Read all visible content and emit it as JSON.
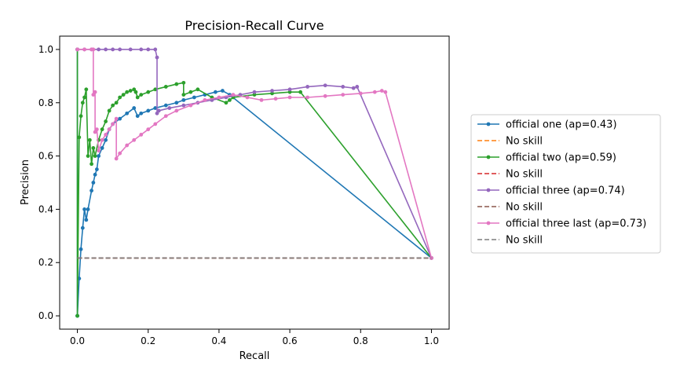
{
  "chart_data": {
    "type": "line",
    "title": "Precision-Recall Curve",
    "xlabel": "Recall",
    "ylabel": "Precision",
    "xlim": [
      -0.05,
      1.05
    ],
    "ylim": [
      -0.05,
      1.05
    ],
    "xticks": [
      "0.0",
      "0.2",
      "0.4",
      "0.6",
      "0.8",
      "1.0"
    ],
    "yticks": [
      "0.0",
      "0.2",
      "0.4",
      "0.6",
      "0.8",
      "1.0"
    ],
    "grid": false,
    "legend_position": "center-right-outside",
    "series": [
      {
        "name": "official one (ap=0.43)",
        "color": "#1f77b4",
        "style": "solid-marker",
        "x": [
          0.0,
          0.0,
          0.0,
          0.0,
          0.005,
          0.01,
          0.015,
          0.02,
          0.025,
          0.03,
          0.04,
          0.045,
          0.05,
          0.055,
          0.06,
          0.07,
          0.08,
          0.09,
          0.1,
          0.12,
          0.14,
          0.16,
          0.17,
          0.18,
          0.2,
          0.22,
          0.25,
          0.28,
          0.3,
          0.33,
          0.36,
          0.39,
          0.41,
          0.43,
          1.0
        ],
        "y": [
          0.0,
          1.0,
          0.0,
          0.0,
          0.14,
          0.25,
          0.33,
          0.4,
          0.36,
          0.4,
          0.47,
          0.5,
          0.53,
          0.55,
          0.6,
          0.63,
          0.66,
          0.7,
          0.72,
          0.74,
          0.76,
          0.78,
          0.75,
          0.76,
          0.77,
          0.78,
          0.79,
          0.8,
          0.81,
          0.82,
          0.83,
          0.84,
          0.845,
          0.83,
          0.217
        ]
      },
      {
        "name": "No skill",
        "color": "#ff7f0e",
        "style": "dashed",
        "x": [
          0.0,
          1.0
        ],
        "y": [
          0.217,
          0.217
        ]
      },
      {
        "name": "official two (ap=0.59)",
        "color": "#2ca02c",
        "style": "solid-marker",
        "x": [
          0.0,
          0.0,
          0.005,
          0.01,
          0.015,
          0.02,
          0.025,
          0.03,
          0.035,
          0.04,
          0.045,
          0.05,
          0.06,
          0.07,
          0.08,
          0.09,
          0.1,
          0.11,
          0.12,
          0.13,
          0.14,
          0.15,
          0.16,
          0.165,
          0.17,
          0.18,
          0.2,
          0.22,
          0.25,
          0.28,
          0.3,
          0.3,
          0.32,
          0.34,
          0.38,
          0.42,
          0.43,
          0.44,
          0.5,
          0.55,
          0.6,
          0.63,
          1.0
        ],
        "y": [
          1.0,
          0.0,
          0.67,
          0.75,
          0.8,
          0.82,
          0.85,
          0.6,
          0.66,
          0.57,
          0.63,
          0.6,
          0.66,
          0.7,
          0.73,
          0.77,
          0.79,
          0.8,
          0.82,
          0.83,
          0.84,
          0.845,
          0.85,
          0.84,
          0.82,
          0.83,
          0.84,
          0.85,
          0.86,
          0.87,
          0.875,
          0.83,
          0.84,
          0.85,
          0.82,
          0.8,
          0.81,
          0.82,
          0.83,
          0.835,
          0.84,
          0.84,
          0.217
        ]
      },
      {
        "name": "No skill",
        "color": "#d62728",
        "style": "dashed",
        "x": [
          0.0,
          1.0
        ],
        "y": [
          0.217,
          0.217
        ]
      },
      {
        "name": "official three (ap=0.74)",
        "color": "#9467bd",
        "style": "solid-marker",
        "x": [
          0.0,
          0.02,
          0.04,
          0.06,
          0.08,
          0.1,
          0.12,
          0.15,
          0.18,
          0.2,
          0.22,
          0.225,
          0.225,
          0.23,
          0.26,
          0.3,
          0.34,
          0.38,
          0.42,
          0.46,
          0.5,
          0.55,
          0.6,
          0.65,
          0.7,
          0.75,
          0.78,
          0.79,
          1.0
        ],
        "y": [
          1.0,
          1.0,
          1.0,
          1.0,
          1.0,
          1.0,
          1.0,
          1.0,
          1.0,
          1.0,
          1.0,
          0.97,
          0.76,
          0.77,
          0.78,
          0.79,
          0.8,
          0.81,
          0.82,
          0.83,
          0.84,
          0.845,
          0.85,
          0.86,
          0.865,
          0.86,
          0.855,
          0.86,
          0.217
        ]
      },
      {
        "name": "No skill",
        "color": "#8c564b",
        "style": "dashed",
        "x": [
          0.0,
          1.0
        ],
        "y": [
          0.217,
          0.217
        ]
      },
      {
        "name": "official three last (ap=0.73)",
        "color": "#e377c2",
        "style": "solid-marker",
        "x": [
          0.0,
          0.02,
          0.04,
          0.045,
          0.045,
          0.05,
          0.05,
          0.055,
          0.06,
          0.07,
          0.08,
          0.09,
          0.1,
          0.11,
          0.11,
          0.12,
          0.14,
          0.16,
          0.18,
          0.2,
          0.22,
          0.25,
          0.28,
          0.32,
          0.36,
          0.4,
          0.44,
          0.48,
          0.52,
          0.56,
          0.6,
          0.65,
          0.7,
          0.75,
          0.8,
          0.84,
          0.86,
          0.87,
          1.0
        ],
        "y": [
          1.0,
          1.0,
          1.0,
          1.0,
          0.83,
          0.84,
          0.69,
          0.7,
          0.62,
          0.66,
          0.68,
          0.7,
          0.72,
          0.74,
          0.59,
          0.61,
          0.64,
          0.66,
          0.68,
          0.7,
          0.72,
          0.75,
          0.77,
          0.79,
          0.81,
          0.82,
          0.83,
          0.82,
          0.81,
          0.815,
          0.82,
          0.82,
          0.825,
          0.83,
          0.835,
          0.84,
          0.845,
          0.84,
          0.217
        ]
      },
      {
        "name": "No skill",
        "color": "#7f7f7f",
        "style": "dashed",
        "x": [
          0.0,
          1.0
        ],
        "y": [
          0.217,
          0.217
        ]
      }
    ]
  }
}
